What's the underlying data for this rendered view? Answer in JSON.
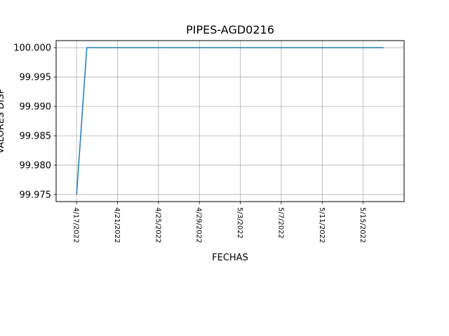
{
  "chart_data": {
    "type": "line",
    "title": "PIPES-AGD0216",
    "xlabel": "FECHAS",
    "ylabel": "VALORES DISP",
    "x_ticks": [
      "4/17/2022",
      "4/21/2022",
      "4/25/2022",
      "4/29/2022",
      "5/3/2022",
      "5/7/2022",
      "5/11/2022",
      "5/15/2022"
    ],
    "y_ticks": [
      "99.975",
      "99.980",
      "99.985",
      "99.990",
      "99.995",
      "100.000"
    ],
    "xlim": [
      "2022-04-15",
      "2022-05-19"
    ],
    "ylim": [
      99.9738,
      100.0012
    ],
    "grid": true,
    "series": [
      {
        "color": "#1f77b4",
        "x": [
          "2022-04-17",
          "2022-04-18",
          "2022-04-19",
          "2022-04-20",
          "2022-04-21",
          "2022-04-22",
          "2022-04-23",
          "2022-04-24",
          "2022-04-25",
          "2022-04-26",
          "2022-04-27",
          "2022-04-28",
          "2022-04-29",
          "2022-04-30",
          "2022-05-01",
          "2022-05-02",
          "2022-05-03",
          "2022-05-04",
          "2022-05-05",
          "2022-05-06",
          "2022-05-07",
          "2022-05-08",
          "2022-05-09",
          "2022-05-10",
          "2022-05-11",
          "2022-05-12",
          "2022-05-13",
          "2022-05-14",
          "2022-05-15",
          "2022-05-16",
          "2022-05-17"
        ],
        "y": [
          99.975,
          100,
          100,
          100,
          100,
          100,
          100,
          100,
          100,
          100,
          100,
          100,
          100,
          100,
          100,
          100,
          100,
          100,
          100,
          100,
          100,
          100,
          100,
          100,
          100,
          100,
          100,
          100,
          100,
          100,
          100
        ]
      }
    ]
  }
}
